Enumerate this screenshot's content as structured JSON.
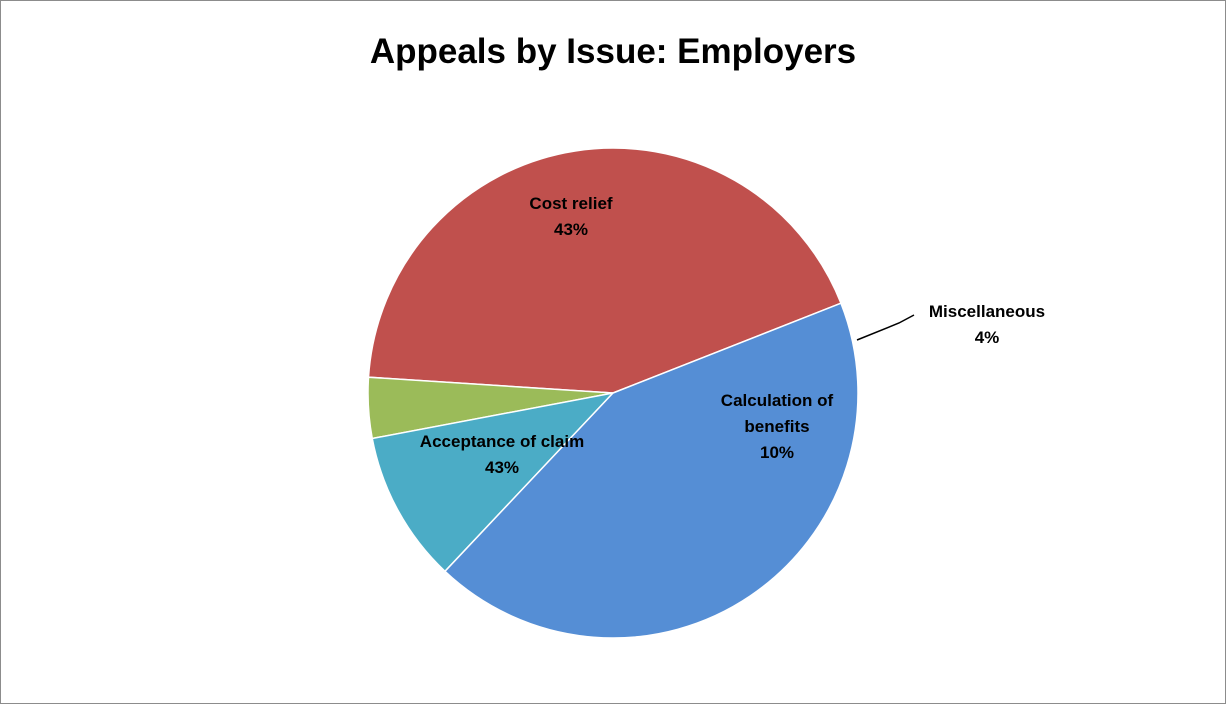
{
  "chart_data": {
    "type": "pie",
    "title": "Appeals by Issue: Employers",
    "slices": [
      {
        "label": "Cost relief",
        "value": 43,
        "value_label": "43%",
        "color": "#c0504d"
      },
      {
        "label": "Miscellaneous",
        "value": 4,
        "value_label": "4%",
        "color": "#9bbb59"
      },
      {
        "label": "Calculation of benefits",
        "value": 10,
        "value_label": "10%",
        "color": "#4bacc6"
      },
      {
        "label": "Acceptance of claim",
        "value": 43,
        "value_label": "43%",
        "color": "#558ed5"
      }
    ],
    "label_style": "category and percentage on slices; Miscellaneous outside with leader line",
    "legend": "none"
  }
}
